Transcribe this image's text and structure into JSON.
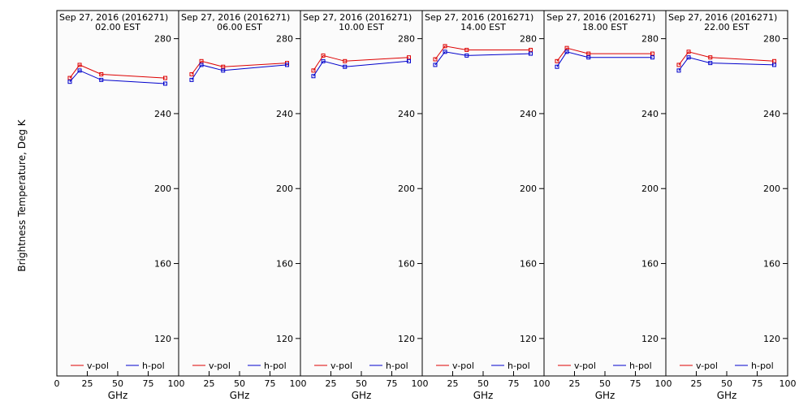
{
  "chart_data": {
    "type": "line",
    "ylabel": "Brightness Temperature, Deg K",
    "xlabel": "GHz",
    "xlim": [
      0,
      100
    ],
    "ylim": [
      100,
      295
    ],
    "yticks": [
      120,
      160,
      200,
      240,
      280
    ],
    "xticks": [
      0,
      25,
      50,
      75,
      100
    ],
    "x": [
      10.65,
      18.7,
      36.5,
      89.0
    ],
    "series_colors": {
      "v": "#dd0000",
      "h": "#0000cc"
    },
    "legend": {
      "v": "v-pol",
      "h": "h-pol"
    },
    "panels": [
      {
        "date": "Sep 27, 2016 (2016271)",
        "time": "02.00 EST",
        "v": [
          259,
          266,
          261,
          259
        ],
        "h": [
          257,
          263,
          258,
          256
        ]
      },
      {
        "date": "Sep 27, 2016 (2016271)",
        "time": "06.00 EST",
        "v": [
          261,
          268,
          265,
          267
        ],
        "h": [
          258,
          266,
          263,
          266
        ]
      },
      {
        "date": "Sep 27, 2016 (2016271)",
        "time": "10.00 EST",
        "v": [
          263,
          271,
          268,
          270
        ],
        "h": [
          260,
          268,
          265,
          268
        ]
      },
      {
        "date": "Sep 27, 2016 (2016271)",
        "time": "14.00 EST",
        "v": [
          269,
          276,
          274,
          274
        ],
        "h": [
          266,
          273,
          271,
          272
        ]
      },
      {
        "date": "Sep 27, 2016 (2016271)",
        "time": "18.00 EST",
        "v": [
          268,
          275,
          272,
          272
        ],
        "h": [
          265,
          273,
          270,
          270
        ]
      },
      {
        "date": "Sep 27, 2016 (2016271)",
        "time": "22.00 EST",
        "v": [
          266,
          273,
          270,
          268
        ],
        "h": [
          263,
          270,
          267,
          266
        ]
      }
    ]
  }
}
